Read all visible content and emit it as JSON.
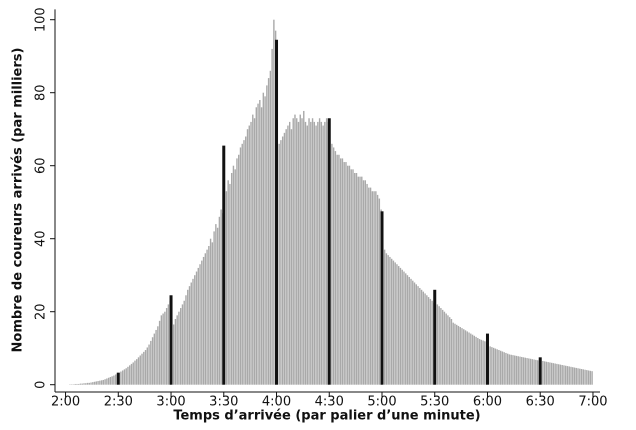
{
  "chart_data": {
    "type": "histogram",
    "xlabel": "Temps d’arrivée (par palier d’une minute)",
    "ylabel": "Nombre de coureurs arrivés (par milliers)",
    "color": "#a9a9a9",
    "highlight_color": "#111111",
    "bins": [
      120,
      121,
      122,
      123,
      124,
      125,
      126,
      127,
      128,
      129,
      130,
      131,
      132,
      133,
      134,
      135,
      136,
      137,
      138,
      139,
      140,
      141,
      142,
      143,
      144,
      145,
      146,
      147,
      148,
      149,
      150,
      151,
      152,
      153,
      154,
      155,
      156,
      157,
      158,
      159,
      160,
      161,
      162,
      163,
      164,
      165,
      166,
      167,
      168,
      169,
      170,
      171,
      172,
      173,
      174,
      175,
      176,
      177,
      178,
      179,
      180,
      181,
      182,
      183,
      184,
      185,
      186,
      187,
      188,
      189,
      190,
      191,
      192,
      193,
      194,
      195,
      196,
      197,
      198,
      199,
      200,
      201,
      202,
      203,
      204,
      205,
      206,
      207,
      208,
      209,
      210,
      211,
      212,
      213,
      214,
      215,
      216,
      217,
      218,
      219,
      220,
      221,
      222,
      223,
      224,
      225,
      226,
      227,
      228,
      229,
      230,
      231,
      232,
      233,
      234,
      235,
      236,
      237,
      238,
      239,
      240,
      241,
      242,
      243,
      244,
      245,
      246,
      247,
      248,
      249,
      250,
      251,
      252,
      253,
      254,
      255,
      256,
      257,
      258,
      259,
      260,
      261,
      262,
      263,
      264,
      265,
      266,
      267,
      268,
      269,
      270,
      271,
      272,
      273,
      274,
      275,
      276,
      277,
      278,
      279,
      280,
      281,
      282,
      283,
      284,
      285,
      286,
      287,
      288,
      289,
      290,
      291,
      292,
      293,
      294,
      295,
      296,
      297,
      298,
      299,
      300,
      301,
      302,
      303,
      304,
      305,
      306,
      307,
      308,
      309,
      310,
      311,
      312,
      313,
      314,
      315,
      316,
      317,
      318,
      319,
      320,
      321,
      322,
      323,
      324,
      325,
      326,
      327,
      328,
      329,
      330,
      331,
      332,
      333,
      334,
      335,
      336,
      337,
      338,
      339,
      340,
      341,
      342,
      343,
      344,
      345,
      346,
      347,
      348,
      349,
      350,
      351,
      352,
      353,
      354,
      355,
      356,
      357,
      358,
      359,
      360,
      361,
      362,
      363,
      364,
      365,
      366,
      367,
      368,
      369,
      370,
      371,
      372,
      373,
      374,
      375,
      376,
      377,
      378,
      379,
      380,
      381,
      382,
      383,
      384,
      385,
      386,
      387,
      388,
      389,
      390,
      391,
      392,
      393,
      394,
      395,
      396,
      397,
      398,
      399,
      400,
      401,
      402,
      403,
      404,
      405,
      406,
      407,
      408,
      409,
      410,
      411,
      412,
      413,
      414,
      415,
      416,
      417,
      418,
      419,
      420
    ],
    "values": [
      0,
      0,
      0.1,
      0.1,
      0.1,
      0.2,
      0.2,
      0.2,
      0.3,
      0.3,
      0.4,
      0.4,
      0.5,
      0.5,
      0.6,
      0.7,
      0.8,
      0.9,
      1.0,
      1.1,
      1.2,
      1.3,
      1.5,
      1.7,
      1.9,
      2.1,
      2.3,
      2.5,
      2.8,
      3.0,
      3.3,
      3.6,
      3.9,
      4.2,
      4.5,
      4.9,
      5.3,
      5.7,
      6.1,
      6.6,
      7.0,
      7.5,
      8.0,
      8.5,
      9.0,
      9.5,
      10.2,
      11,
      12,
      13,
      14,
      15,
      16,
      17.5,
      19,
      19.5,
      20,
      21,
      22,
      23,
      24.5,
      16.5,
      18,
      19,
      20,
      21,
      22,
      23,
      24.5,
      26,
      27,
      28,
      29,
      30,
      31,
      32,
      33,
      34,
      35,
      36,
      37,
      38,
      40,
      39,
      42,
      44,
      43,
      46,
      48,
      47,
      65.5,
      53,
      56,
      55,
      58,
      60,
      59,
      62,
      63,
      65,
      66,
      67,
      68,
      70,
      71,
      72,
      74,
      73,
      76,
      77,
      78,
      76,
      80,
      79,
      82,
      84,
      86,
      92,
      100,
      97,
      94.5,
      66,
      67,
      68,
      69,
      70,
      71,
      72,
      70,
      73,
      74,
      73,
      72,
      74,
      73,
      75,
      72,
      71,
      73,
      72,
      73,
      72,
      71,
      72,
      73,
      72,
      71,
      72,
      73,
      72,
      73,
      66,
      65,
      64,
      63,
      63,
      62,
      62,
      61,
      61,
      60,
      60,
      59,
      59,
      58,
      58,
      57,
      57,
      57,
      56,
      56,
      55,
      54,
      54,
      53,
      53,
      53,
      52,
      51,
      48,
      47.5,
      37,
      36,
      35.5,
      35,
      34.5,
      34,
      33.5,
      33,
      32.5,
      32,
      31.5,
      31,
      30.5,
      30,
      29.5,
      29,
      28.5,
      28,
      27.5,
      27,
      26.5,
      26,
      25.5,
      25,
      24.5,
      24,
      23.5,
      23,
      22.5,
      26,
      22,
      21.5,
      21,
      20.5,
      20,
      19.5,
      19,
      18.5,
      18,
      17,
      16.7,
      16.4,
      16.1,
      15.8,
      15.5,
      15.2,
      14.9,
      14.6,
      14.3,
      14,
      13.7,
      13.4,
      13.1,
      12.8,
      12.5,
      12.3,
      12.1,
      11.9,
      11.7,
      14,
      10.5,
      10.3,
      10.1,
      9.9,
      9.7,
      9.5,
      9.3,
      9.1,
      8.9,
      8.7,
      8.5,
      8.3,
      8.2,
      8.1,
      8,
      7.9,
      7.8,
      7.7,
      7.6,
      7.5,
      7.4,
      7.3,
      7.2,
      7.1,
      7.0,
      6.9,
      6.8,
      6.7,
      6.6,
      7.5,
      6.5,
      6.4,
      6.3,
      6.2,
      6.1,
      6.0,
      5.9,
      5.8,
      5.7,
      5.6,
      5.5,
      5.4,
      5.3,
      5.2,
      5.1,
      5.0,
      4.9,
      4.8,
      4.7,
      4.6,
      4.5,
      4.4,
      4.3,
      4.2,
      4.1,
      4.0,
      3.9,
      3.8,
      3.7
    ],
    "xlim": [
      114,
      424
    ],
    "xticks": [
      {
        "value": 120,
        "label": "2:00"
      },
      {
        "value": 150,
        "label": "2:30"
      },
      {
        "value": 180,
        "label": "3:00"
      },
      {
        "value": 210,
        "label": "3:30"
      },
      {
        "value": 240,
        "label": "4:00"
      },
      {
        "value": 270,
        "label": "4:30"
      },
      {
        "value": 300,
        "label": "5:00"
      },
      {
        "value": 330,
        "label": "5:30"
      },
      {
        "value": 360,
        "label": "6:00"
      },
      {
        "value": 390,
        "label": "6:30"
      },
      {
        "value": 420,
        "label": "7:00"
      }
    ],
    "ylim": [
      -2,
      102
    ],
    "yticks": [
      0,
      20,
      40,
      60,
      80,
      100
    ]
  }
}
